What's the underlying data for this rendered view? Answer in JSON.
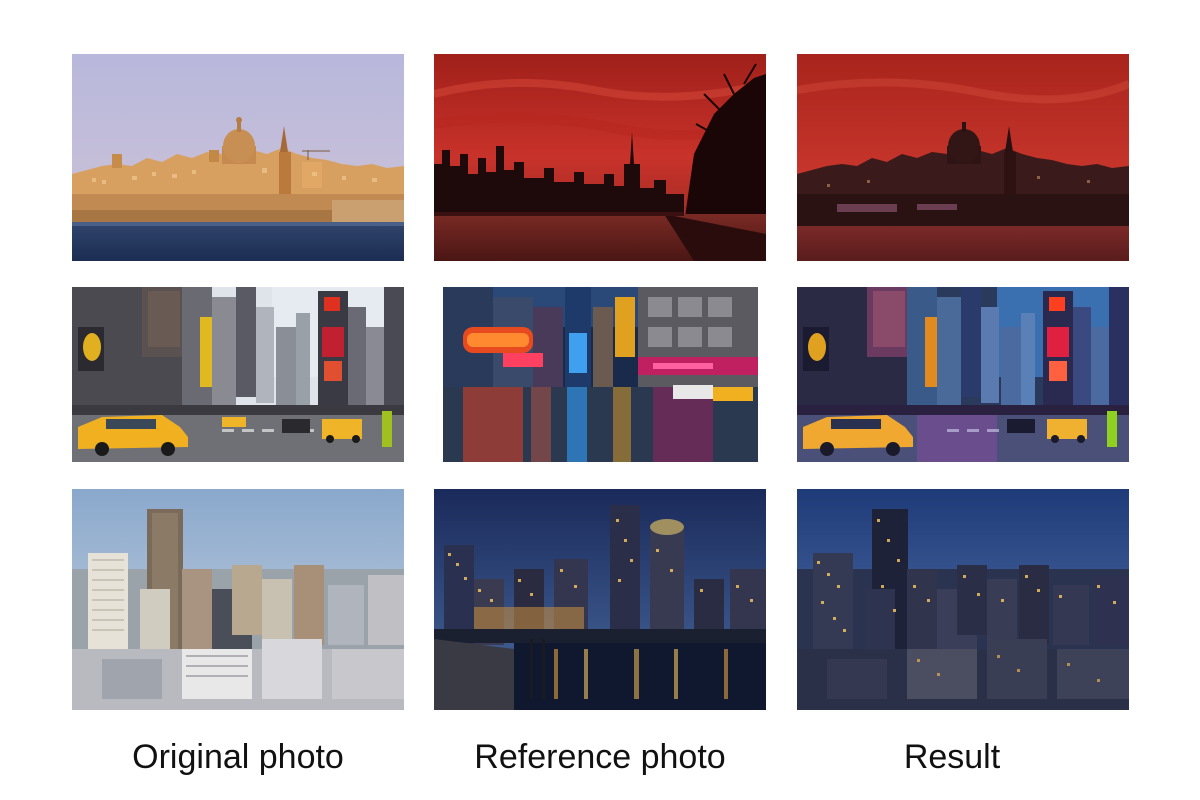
{
  "captions": {
    "original": "Original photo",
    "reference": "Reference photo",
    "result": "Result"
  }
}
